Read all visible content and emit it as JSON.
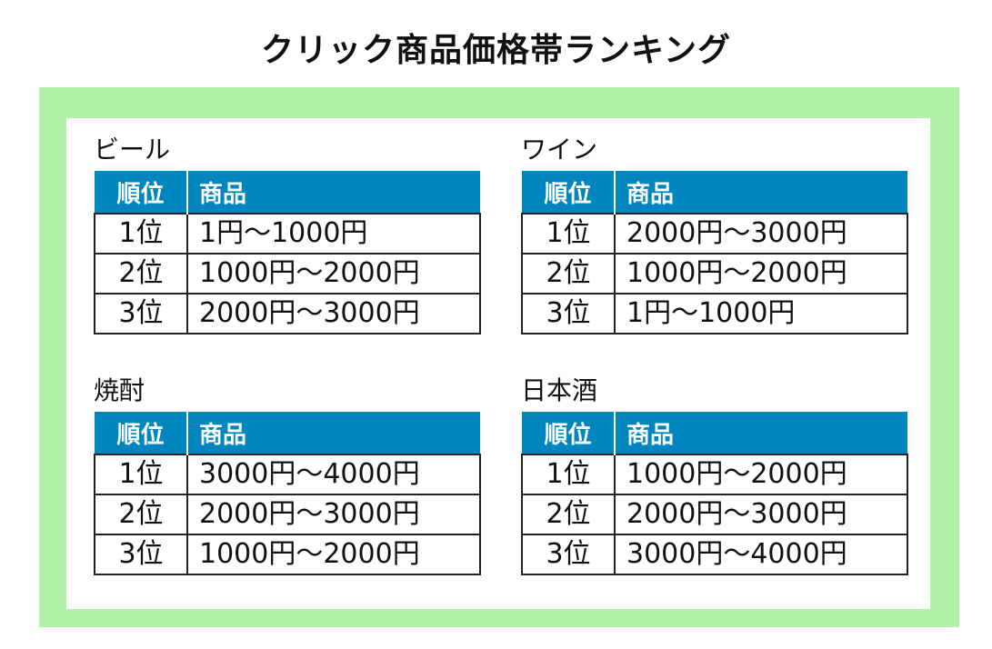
{
  "title": "クリック商品価格帯ランキング",
  "colors": {
    "frame_green": "#b3f0aa",
    "header_blue": "#0086bf",
    "header_text": "#ffffff",
    "border": "#222222"
  },
  "headers": {
    "rank": "順位",
    "item": "商品"
  },
  "sections": [
    {
      "name": "ビール",
      "rows": [
        {
          "rank": "1位",
          "item": "1円〜1000円"
        },
        {
          "rank": "2位",
          "item": "1000円〜2000円"
        },
        {
          "rank": "3位",
          "item": "2000円〜3000円"
        }
      ]
    },
    {
      "name": "ワイン",
      "rows": [
        {
          "rank": "1位",
          "item": "2000円〜3000円"
        },
        {
          "rank": "2位",
          "item": "1000円〜2000円"
        },
        {
          "rank": "3位",
          "item": "1円〜1000円"
        }
      ]
    },
    {
      "name": "焼酎",
      "rows": [
        {
          "rank": "1位",
          "item": "3000円〜4000円"
        },
        {
          "rank": "2位",
          "item": "2000円〜3000円"
        },
        {
          "rank": "3位",
          "item": "1000円〜2000円"
        }
      ]
    },
    {
      "name": "日本酒",
      "rows": [
        {
          "rank": "1位",
          "item": "1000円〜2000円"
        },
        {
          "rank": "2位",
          "item": "2000円〜3000円"
        },
        {
          "rank": "3位",
          "item": "3000円〜4000円"
        }
      ]
    }
  ]
}
